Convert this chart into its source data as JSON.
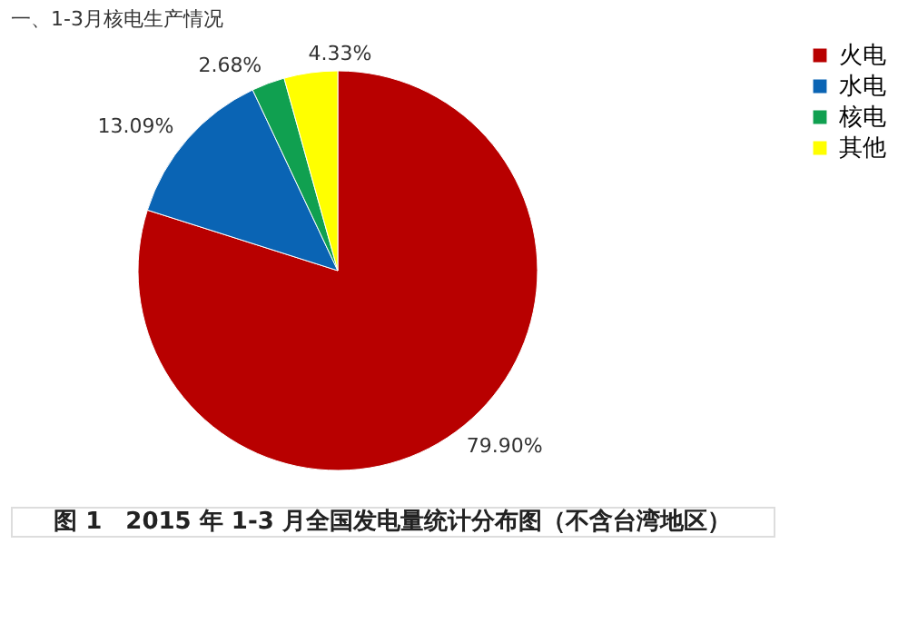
{
  "chart_data": {
    "type": "pie",
    "title": "一、1-3月核电生产情况",
    "categories": [
      "火电",
      "水电",
      "核电",
      "其他"
    ],
    "values": [
      79.9,
      13.09,
      2.68,
      4.33
    ],
    "value_labels": [
      "79.90%",
      "13.09%",
      "2.68%",
      "4.33%"
    ],
    "colors": [
      "#b80000",
      "#0a64b4",
      "#10a050",
      "#ffff00"
    ],
    "legend": "right",
    "annotations": [
      "图 1　2015 年 1-3 月全国发电量统计分布图（不含台湾地区）"
    ]
  }
}
